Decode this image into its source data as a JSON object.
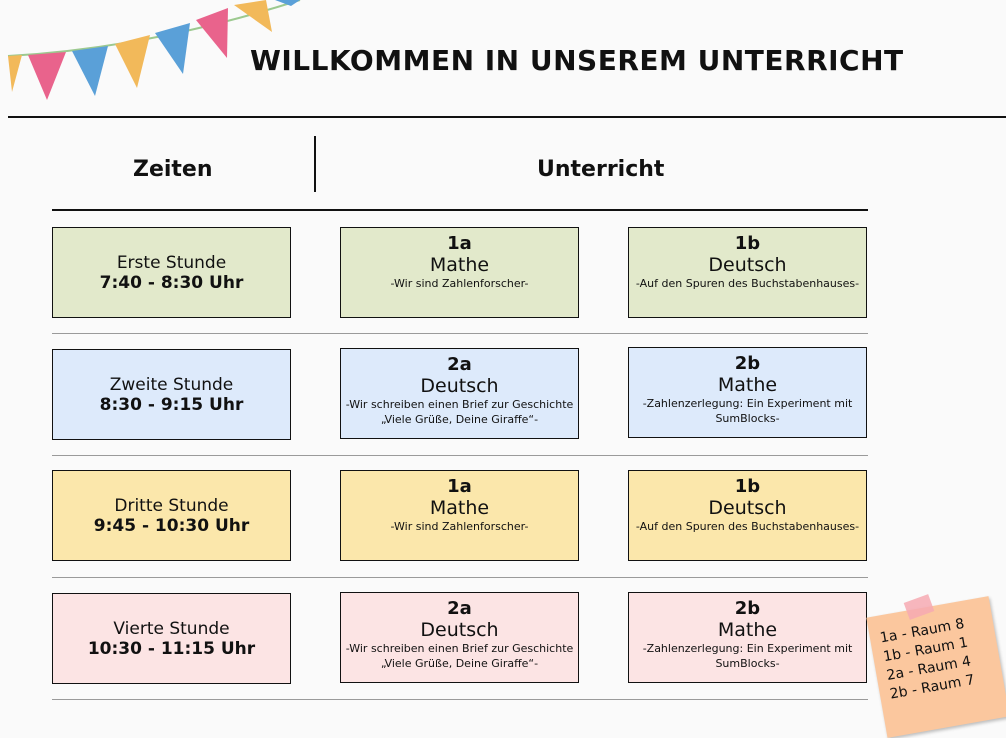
{
  "header": {
    "title": "WILLKOMMEN IN UNSEREM UNTERRICHT"
  },
  "columns": {
    "zeiten": "Zeiten",
    "unterricht": "Unterricht"
  },
  "colors": {
    "row1": "#e2e9cb",
    "row2": "#ddeafb",
    "row3": "#fbe7ab",
    "row4": "#fce4e4",
    "note": "#fbc79e"
  },
  "rows": [
    {
      "time_name": "Erste Stunde",
      "time_range": "7:40 - 8:30 Uhr",
      "left": {
        "cls": "1a",
        "subject": "Mathe",
        "desc": "-Wir sind Zahlenforscher-"
      },
      "right": {
        "cls": "1b",
        "subject": "Deutsch",
        "desc": "-Auf den Spuren des Buchstabenhauses-"
      }
    },
    {
      "time_name": "Zweite Stunde",
      "time_range": "8:30 - 9:15 Uhr",
      "left": {
        "cls": "2a",
        "subject": "Deutsch",
        "desc": "-Wir schreiben einen Brief zur Geschichte „Viele Grüße, Deine Giraffe“-"
      },
      "right": {
        "cls": "2b",
        "subject": "Mathe",
        "desc": "-Zahlenzerlegung: Ein Experiment mit SumBlocks-"
      }
    },
    {
      "time_name": "Dritte Stunde",
      "time_range": "9:45 - 10:30 Uhr",
      "left": {
        "cls": "1a",
        "subject": "Mathe",
        "desc": "-Wir sind Zahlenforscher-"
      },
      "right": {
        "cls": "1b",
        "subject": "Deutsch",
        "desc": "-Auf den Spuren des Buchstabenhauses-"
      }
    },
    {
      "time_name": "Vierte Stunde",
      "time_range": "10:30 - 11:15 Uhr",
      "left": {
        "cls": "2a",
        "subject": "Deutsch",
        "desc": "-Wir schreiben einen Brief zur Geschichte „Viele Grüße, Deine Giraffe“-"
      },
      "right": {
        "cls": "2b",
        "subject": "Mathe",
        "desc": "-Zahlenzerlegung: Ein Experiment mit SumBlocks-"
      }
    }
  ],
  "note": {
    "lines": [
      "1a - Raum 8",
      "1b - Raum 1",
      "2a - Raum 4",
      "2b - Raum 7"
    ]
  }
}
